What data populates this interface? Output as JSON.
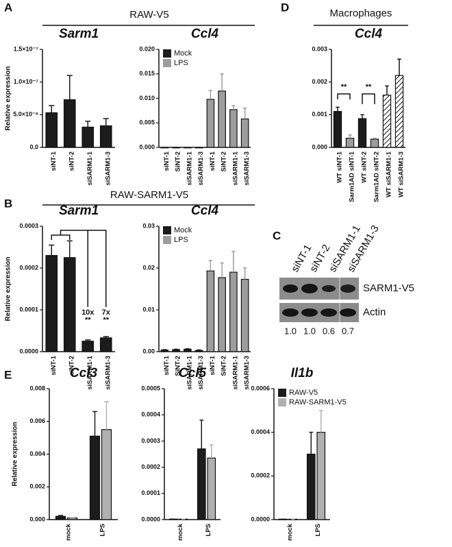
{
  "panel_labels": [
    "A",
    "B",
    "C",
    "D",
    "E"
  ],
  "headers": [
    "RAW-V5",
    "RAW-SARM1-V5",
    "Macrophages"
  ],
  "chart_data": [
    {
      "type": "bar",
      "title": "Sarm1",
      "ylabel": "Relative expression",
      "categories": [
        "siNT-1",
        "siNT-2",
        "siSARM1-1",
        "siSARM1-3"
      ],
      "series": [
        {
          "color": "#1c1c1c",
          "values": [
            5.3e-08,
            7.3e-08,
            3.1e-08,
            3.3e-08
          ],
          "errors": [
            1.1e-08,
            3.7e-08,
            9e-09,
            1.1e-08
          ]
        }
      ],
      "ylim": [
        0,
        1.5e-07
      ],
      "yticks": [
        {
          "value": 0,
          "label": "0.0"
        },
        {
          "value": 5e-08,
          "label": "5.0×10⁻⁸"
        },
        {
          "value": 1e-07,
          "label": "1.0×10⁻⁷"
        },
        {
          "value": 1.5e-07,
          "label": "1.5×10⁻⁷"
        }
      ]
    },
    {
      "type": "bar",
      "title": "Ccl4",
      "legend": "top-left",
      "categories": [
        "siNT-1",
        "SiNT-2",
        "siSARM1-1",
        "siSARM1-3",
        "siNT-1",
        "SiNT-2",
        "siSARM1-1",
        "siSARM1-3"
      ],
      "series": [
        {
          "name": "Mock",
          "color": "#1c1c1c",
          "values": [
            0,
            0,
            0,
            0,
            null,
            null,
            null,
            null
          ],
          "errors": [
            0,
            0,
            0,
            0,
            null,
            null,
            null,
            null
          ]
        },
        {
          "name": "LPS",
          "color": "#9d9d9d",
          "values": [
            null,
            null,
            null,
            null,
            0.0098,
            0.0115,
            0.0077,
            0.0058
          ],
          "errors": [
            null,
            null,
            null,
            null,
            0.0018,
            0.0035,
            0.0008,
            0.0022
          ]
        }
      ],
      "ylim": [
        0,
        0.02
      ],
      "yticks": [
        {
          "value": 0,
          "label": "0.000"
        },
        0.005,
        {
          "value": 0.01,
          "label": "0.010"
        },
        0.015,
        {
          "value": 0.02,
          "label": "0.020"
        }
      ]
    },
    {
      "type": "bar",
      "title": "Ccl4",
      "annotations": [
        "**",
        "**"
      ],
      "categories": [
        "WT siNT-1",
        "Sarm1AD siNT-1",
        "WT siNT-2",
        "Sarm1AD siNT-2",
        "WT siSARM1-1",
        "WT siSARM1-3"
      ],
      "series": [
        {
          "color": "#1c1c1c",
          "values": [
            0.0011,
            null,
            0.00088,
            null,
            null,
            null
          ],
          "errors": [
            0.00013,
            null,
            0.00012,
            null,
            null,
            null
          ]
        },
        {
          "color": "#9d9d9d",
          "values": [
            null,
            0.00028,
            null,
            0.00025,
            null,
            null
          ],
          "errors": [
            null,
            0.0001,
            null,
            3e-05,
            null,
            null
          ]
        },
        {
          "color": "#ffffff",
          "hatch": true,
          "values": [
            null,
            null,
            null,
            null,
            0.0016,
            0.0022
          ],
          "errors": [
            null,
            null,
            null,
            null,
            0.00028,
            0.0005
          ]
        }
      ],
      "ylim": [
        0,
        0.003
      ],
      "yticks": [
        {
          "value": 0,
          "label": "0.000"
        },
        0.001,
        0.002,
        0.003
      ]
    },
    {
      "type": "bar",
      "title": "Sarm1",
      "ylabel": "Relative expression",
      "annotations": [
        "10x",
        "**",
        "7x",
        "**"
      ],
      "categories": [
        "siNT-1",
        "siNT-2",
        "siSARM1-1",
        "siSARM1-3"
      ],
      "series": [
        {
          "color": "#1c1c1c",
          "values": [
            0.00023,
            0.000225,
            2.5e-05,
            3.3e-05
          ],
          "errors": [
            2.5e-05,
            4e-05,
            3e-06,
            3e-06
          ]
        }
      ],
      "ylim": [
        0,
        0.0003
      ],
      "yticks": [
        {
          "value": 0,
          "label": "0.0000"
        },
        0.0001,
        0.0002,
        0.0003
      ]
    },
    {
      "type": "bar",
      "title": "Ccl4",
      "legend": "top-left",
      "categories": [
        "siNT-1",
        "SiNT-2",
        "siSARM1-1",
        "siSARM1-3",
        "siNT-1",
        "SiNT-2",
        "siSARM1-1",
        "siSARM1-3"
      ],
      "series": [
        {
          "name": "Mock",
          "color": "#1c1c1c",
          "values": [
            0.0004,
            0.0005,
            0.0006,
            0.0003,
            null,
            null,
            null,
            null
          ],
          "errors": [
            0.0001,
            0.0001,
            0.0001,
            0.0001,
            null,
            null,
            null,
            null
          ]
        },
        {
          "name": "LPS",
          "color": "#9d9d9d",
          "values": [
            null,
            null,
            null,
            null,
            0.0193,
            0.0177,
            0.019,
            0.0173
          ],
          "errors": [
            null,
            null,
            null,
            null,
            0.0025,
            0.0035,
            0.005,
            0.0027
          ]
        }
      ],
      "ylim": [
        0,
        0.03
      ],
      "yticks": [
        {
          "value": 0,
          "label": "0.00"
        },
        0.01,
        0.02,
        0.03
      ]
    },
    {
      "type": "bar",
      "title": "Ccl3",
      "ylabel": "Relative expression",
      "categories": [
        "mock",
        "LPS"
      ],
      "series": [
        {
          "color": "#1c1c1c",
          "values": [
            0.0002,
            0.0051
          ],
          "errors": [
            5e-05,
            0.0015
          ]
        },
        {
          "color": "#b0b0b0",
          "values": [
            0.0001,
            0.0055
          ],
          "errors": [
            2e-05,
            0.0017
          ]
        }
      ],
      "ylim": [
        0,
        0.008
      ],
      "yticks": [
        {
          "value": 0,
          "label": "0.000"
        },
        0.002,
        0.004,
        0.006,
        0.008
      ]
    },
    {
      "type": "bar",
      "title": "Ccl5",
      "categories": [
        "mock",
        "LPS"
      ],
      "series": [
        {
          "color": "#1c1c1c",
          "values": [
            2e-06,
            0.00027
          ],
          "errors": [
            0,
            0.00011
          ]
        },
        {
          "color": "#b0b0b0",
          "values": [
            2e-06,
            0.000235
          ],
          "errors": [
            0,
            5e-05
          ]
        }
      ],
      "ylim": [
        0,
        0.0005
      ],
      "yticks": [
        {
          "value": 0,
          "label": "0.0000"
        },
        0.0001,
        0.0002,
        0.0003,
        0.0004,
        0.0005
      ]
    },
    {
      "type": "bar",
      "title": "Il1b",
      "legend": "top-left",
      "categories": [
        "mock",
        "LPS"
      ],
      "series": [
        {
          "name": "RAW-V5",
          "color": "#1c1c1c",
          "values": [
            2e-06,
            0.0003
          ],
          "errors": [
            0,
            0.0001
          ]
        },
        {
          "name": "RAW-SARM1-V5",
          "color": "#b0b0b0",
          "values": [
            2e-06,
            0.0004
          ],
          "errors": [
            0,
            0.0001
          ]
        }
      ],
      "ylim": [
        0,
        0.0006
      ],
      "yticks": [
        {
          "value": 0,
          "label": "0.0000"
        },
        0.0002,
        0.0004,
        0.0006
      ]
    }
  ],
  "blot": {
    "lanes": [
      "siNT-1",
      "siNT-2",
      "siSARM1-1",
      "siSARM1-3"
    ],
    "bands": [
      "SARM1-V5",
      "Actin"
    ],
    "quantification": [
      "1.0",
      "1.0",
      "0.6",
      "0.7"
    ]
  }
}
